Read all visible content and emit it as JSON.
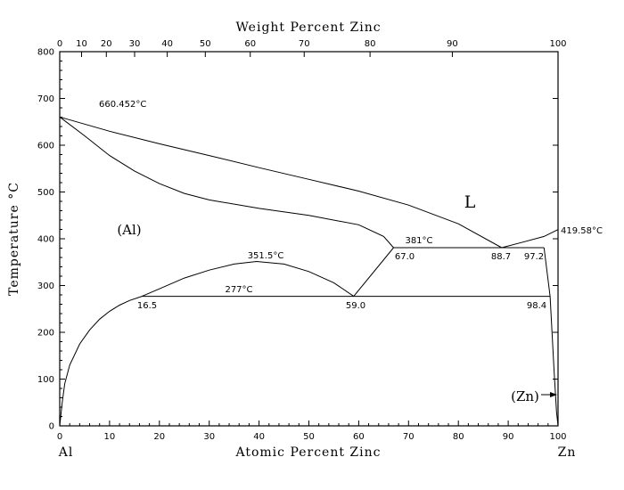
{
  "chart_data": {
    "type": "line",
    "title": "",
    "top_axis": {
      "label": "Weight Percent Zinc",
      "ticks": [
        "0",
        "10",
        "20",
        "30",
        "40",
        "50",
        "60",
        "70",
        "80",
        "90",
        "100"
      ]
    },
    "x_axis": {
      "label": "Atomic Percent Zinc",
      "xlim": [
        0,
        100
      ],
      "ticks": [
        "0",
        "10",
        "20",
        "30",
        "40",
        "50",
        "60",
        "70",
        "80",
        "90",
        "100"
      ],
      "left_end_label": "Al",
      "right_end_label": "Zn"
    },
    "y_axis": {
      "label": "Temperature °C",
      "ylim": [
        0,
        800
      ],
      "ticks": [
        "0",
        "100",
        "200",
        "300",
        "400",
        "500",
        "600",
        "700",
        "800"
      ]
    },
    "annotations": {
      "al_melting": "660.452°C",
      "zn_melting": "419.58°C",
      "eutectic_temp": "381°C",
      "monotectoid_temp": "277°C",
      "miscibility_peak": "351.5°C",
      "c_67": "67.0",
      "c_887": "88.7",
      "c_972": "97.2",
      "c_165": "16.5",
      "c_590": "59.0",
      "c_984": "98.4"
    },
    "phase_labels": {
      "liquid": "L",
      "al_phase": "(Al)",
      "zn_phase": "(Zn)"
    },
    "series": [
      {
        "x": [
          0,
          10,
          20,
          30,
          40,
          50,
          60,
          70,
          80,
          88.7
        ],
        "y": [
          660.452,
          630,
          603,
          578,
          552,
          527,
          502,
          472,
          432,
          381
        ]
      },
      {
        "x": [
          88.7,
          93,
          97.2,
          100
        ],
        "y": [
          381,
          393,
          405,
          419.58
        ]
      },
      {
        "x": [
          0,
          5,
          10,
          15,
          20,
          25,
          30,
          40,
          50,
          60,
          65,
          67.0
        ],
        "y": [
          660.452,
          620,
          578,
          545,
          518,
          497,
          483,
          465,
          450,
          430,
          405,
          381
        ]
      },
      {
        "x": [
          0,
          0.5,
          1,
          2,
          4,
          6,
          8,
          10,
          12,
          14,
          16.5
        ],
        "y": [
          0,
          50,
          90,
          130,
          175,
          205,
          228,
          245,
          258,
          268,
          277
        ]
      },
      {
        "x": [
          16.5,
          20,
          25,
          30,
          35,
          39.5,
          45,
          50,
          55,
          59.0
        ],
        "y": [
          277,
          293,
          316,
          333,
          346,
          351.5,
          346,
          330,
          306,
          277
        ]
      },
      {
        "x": [
          59.0,
          67.0
        ],
        "y": [
          277,
          381
        ]
      },
      {
        "x": [
          67.0,
          97.2
        ],
        "y": [
          381,
          381
        ]
      },
      {
        "x": [
          16.5,
          98.4
        ],
        "y": [
          277,
          277
        ]
      },
      {
        "x": [
          97.2,
          98.4,
          99.2,
          99.7,
          100
        ],
        "y": [
          381,
          277,
          120,
          30,
          0
        ]
      }
    ]
  }
}
